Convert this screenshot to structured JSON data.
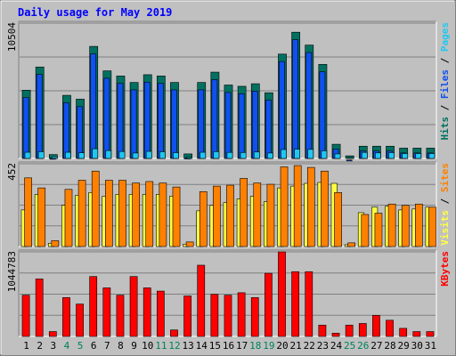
{
  "colors": {
    "frame_bg": "#C0C0C0",
    "plot_bg": "#C0C0C0",
    "title": "#0000FF",
    "hits_shadow": "#007060",
    "files": "#1050F0",
    "pages": "#20C8F0",
    "sites": "#FF8000",
    "visits": "#FFFF40",
    "kbytes": "#FF0000",
    "weekend_day": "#00805C",
    "weekday_day": "#000000",
    "axis_text": "#000000"
  },
  "chart_data": {
    "type": "bar",
    "title": "Daily usage for May 2019",
    "categories": [
      "1",
      "2",
      "3",
      "4",
      "5",
      "6",
      "7",
      "8",
      "9",
      "10",
      "11",
      "12",
      "13",
      "14",
      "15",
      "16",
      "17",
      "18",
      "19",
      "20",
      "21",
      "22",
      "23",
      "24",
      "25",
      "26",
      "27",
      "28",
      "29",
      "30",
      "31"
    ],
    "weekend_days": [
      "4",
      "5",
      "11",
      "12",
      "18",
      "19",
      "25",
      "26"
    ],
    "panels": [
      {
        "id": "hits-files-pages",
        "ymax_label": "10504",
        "ylim": [
          0,
          10504
        ],
        "legend": [
          {
            "text": "Hits",
            "color_key": "hits_shadow"
          },
          {
            "text": "Files",
            "color_key": "files"
          },
          {
            "text": "Pages",
            "color_key": "pages"
          }
        ],
        "legend_separator": " / ",
        "series": [
          {
            "name": "Hits",
            "color_key": "hits_shadow",
            "values": [
              5300,
              7100,
              300,
              4900,
              4600,
              8700,
              6800,
              6400,
              5900,
              6500,
              6400,
              5900,
              350,
              5900,
              6700,
              5700,
              5600,
              5800,
              5100,
              8100,
              9800,
              8800,
              7300,
              1100,
              200,
              950,
              950,
              950,
              800,
              800,
              800
            ]
          },
          {
            "name": "Files",
            "color_key": "files",
            "values": [
              5000,
              6800,
              280,
              4600,
              4300,
              8400,
              6500,
              6100,
              5600,
              6200,
              6100,
              5600,
              300,
              5600,
              6400,
              5400,
              5300,
              5500,
              4800,
              7800,
              9500,
              8500,
              7000,
              1000,
              150,
              850,
              850,
              850,
              700,
              700,
              700
            ]
          },
          {
            "name": "Pages",
            "color_key": "pages",
            "values": [
              480,
              520,
              130,
              480,
              440,
              750,
              610,
              540,
              420,
              550,
              520,
              450,
              90,
              480,
              530,
              470,
              460,
              500,
              420,
              690,
              720,
              700,
              600,
              350,
              60,
              470,
              430,
              450,
              380,
              380,
              380
            ]
          }
        ]
      },
      {
        "id": "sites-visits",
        "ymax_label": "452",
        "ylim": [
          0,
          452
        ],
        "legend": [
          {
            "text": "Visits",
            "color_key": "visits"
          },
          {
            "text": "Sites",
            "color_key": "sites"
          }
        ],
        "legend_separator": " / ",
        "series": [
          {
            "name": "Visits",
            "color_key": "visits",
            "values": [
              200,
              285,
              18,
              225,
              280,
              295,
              275,
              285,
              285,
              285,
              285,
              275,
              12,
              195,
              225,
              240,
              260,
              275,
              245,
              320,
              330,
              345,
              350,
              345,
              10,
              185,
              215,
              220,
              200,
              205,
              215
            ]
          },
          {
            "name": "Sites",
            "color_key": "sites",
            "values": [
              375,
              320,
              32,
              312,
              362,
              412,
              362,
              362,
              347,
              355,
              347,
              325,
              25,
              300,
              330,
              335,
              372,
              347,
              340,
              435,
              442,
              432,
              412,
              295,
              20,
              175,
              182,
              232,
              225,
              232,
              215
            ]
          }
        ]
      },
      {
        "id": "kbytes",
        "ymax_label": "1044783",
        "ylim": [
          0,
          1044783
        ],
        "legend": [
          {
            "text": "KBytes",
            "color_key": "kbytes"
          }
        ],
        "legend_separator": "",
        "series": [
          {
            "name": "KBytes",
            "color_key": "kbytes",
            "values": [
              510000,
              710000,
              60000,
              480000,
              400000,
              740000,
              600000,
              510000,
              740000,
              600000,
              560000,
              80000,
              500000,
              880000,
              520000,
              510000,
              540000,
              480000,
              780000,
              1044783,
              800000,
              800000,
              140000,
              40000,
              140000,
              160000,
              260000,
              200000,
              100000,
              60000,
              60000
            ]
          }
        ]
      }
    ]
  }
}
